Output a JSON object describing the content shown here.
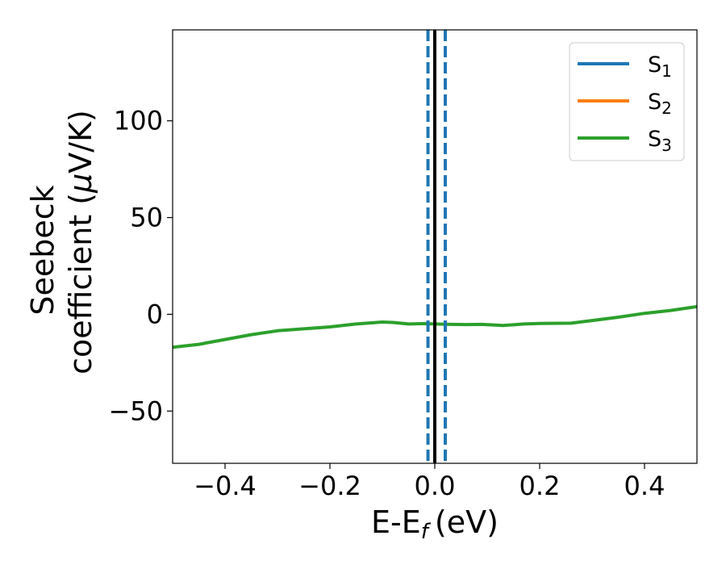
{
  "chart_data": {
    "type": "line",
    "title": "",
    "xlabel": "E-E",
    "xlabel_subscript": "f",
    "xlabel_unit": "(eV)",
    "ylabel_line1": "Seebeck",
    "ylabel_line2_text": "coefficient  (",
    "ylabel_mu": "μ",
    "ylabel_line2_unit": "V/K)",
    "xlim": [
      -0.5,
      0.5
    ],
    "ylim": [
      -77,
      147
    ],
    "xticks": [
      -0.4,
      -0.2,
      0.0,
      0.2,
      0.4
    ],
    "xtick_labels": [
      "−0.4",
      "−0.2",
      "0.0",
      "0.2",
      "0.4"
    ],
    "yticks": [
      -50,
      0,
      50,
      100
    ],
    "ytick_labels": [
      "−50",
      "0",
      "50",
      "100"
    ],
    "grid": false,
    "legend_position": "top-right",
    "series": [
      {
        "name": "S",
        "subscript": "1",
        "color": "#1f77b4",
        "x": [],
        "y": []
      },
      {
        "name": "S",
        "subscript": "2",
        "color": "#ff7f0e",
        "x": [],
        "y": []
      },
      {
        "name": "S",
        "subscript": "3",
        "color": "#2ca02c",
        "x": [
          -0.5,
          -0.45,
          -0.4,
          -0.35,
          -0.3,
          -0.25,
          -0.2,
          -0.15,
          -0.1,
          -0.08,
          -0.05,
          -0.02,
          0.0,
          0.03,
          0.06,
          0.09,
          0.13,
          0.17,
          0.2,
          0.26,
          0.3,
          0.35,
          0.4,
          0.45,
          0.5
        ],
        "y": [
          -17,
          -15.5,
          -13,
          -10.5,
          -8.5,
          -7.5,
          -6.5,
          -5,
          -4,
          -4.2,
          -5,
          -4.8,
          -5,
          -5.2,
          -5.3,
          -5.2,
          -5.8,
          -5,
          -4.7,
          -4.6,
          -3.2,
          -1.5,
          0.5,
          2,
          4
        ]
      }
    ],
    "vertical_lines": [
      {
        "x": 0.0,
        "color": "#000000",
        "style": "solid"
      },
      {
        "x": -0.013,
        "color": "#1f77b4",
        "style": "dashed"
      },
      {
        "x": 0.02,
        "color": "#1f77b4",
        "style": "dashed"
      }
    ]
  }
}
